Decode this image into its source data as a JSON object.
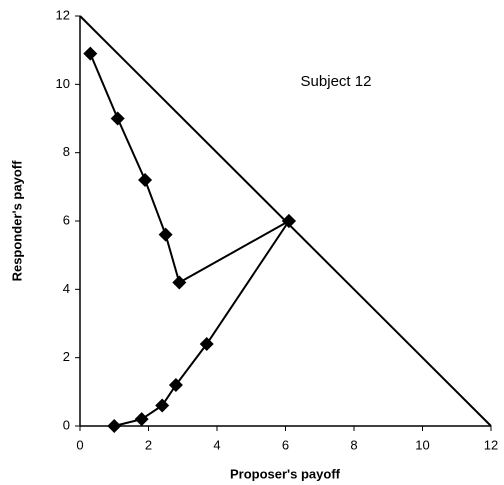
{
  "chart_data": {
    "type": "line",
    "annotation": "Subject 12",
    "x_label": "Proposer's payoff",
    "y_label": "Responder's payoff",
    "xlim": [
      0,
      12
    ],
    "ylim": [
      0,
      12
    ],
    "xticks": [
      0,
      2,
      4,
      6,
      8,
      10,
      12
    ],
    "yticks": [
      0,
      2,
      4,
      6,
      8,
      10,
      12
    ],
    "grid": false,
    "series": [
      {
        "x": [
          0.3,
          1.1,
          1.9,
          2.5,
          2.9,
          6.1
        ],
        "values": [
          10.9,
          9,
          7.2,
          5.6,
          4.2,
          6
        ],
        "color": "#000000",
        "marker": "diamond"
      },
      {
        "x": [
          1.0,
          1.8,
          2.4,
          2.8,
          3.7,
          6.1
        ],
        "values": [
          0,
          0.2,
          0.6,
          1.2,
          2.4,
          6
        ],
        "color": "#000000",
        "marker": "diamond"
      },
      {
        "x": [
          0,
          12
        ],
        "values": [
          12,
          0
        ],
        "color": "#000000",
        "marker": "none"
      }
    ]
  }
}
